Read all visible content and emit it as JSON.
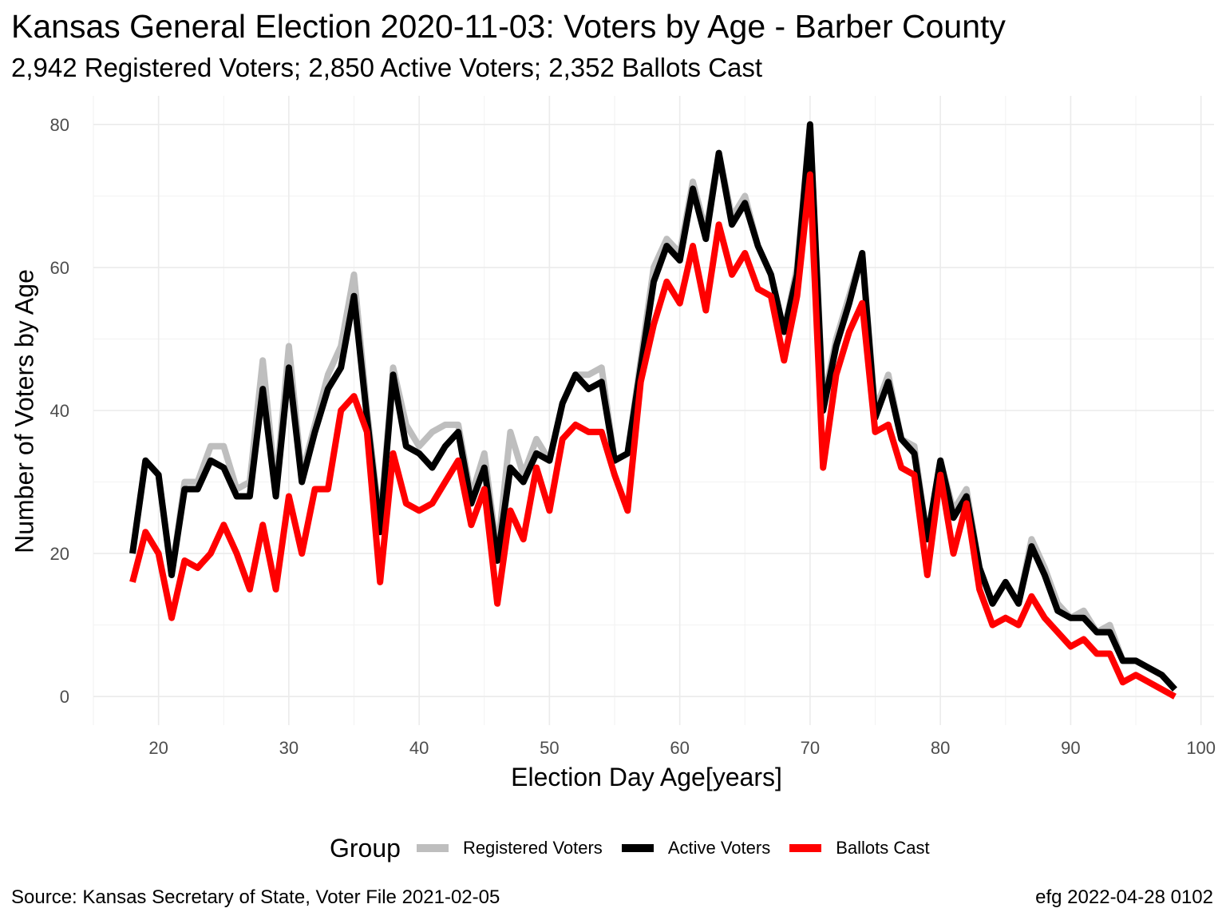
{
  "chart_data": {
    "type": "line",
    "title": "Kansas General Election 2020-11-03:  Voters by Age - Barber County",
    "subtitle": "2,942 Registered Voters; 2,850 Active Voters; 2,352 Ballots Cast",
    "xlabel": "Election Day Age[years]",
    "ylabel": "Number of Voters by Age",
    "xlim": [
      15,
      101
    ],
    "ylim": [
      -4,
      84
    ],
    "xticks": [
      20,
      30,
      40,
      50,
      60,
      70,
      80,
      90,
      100
    ],
    "yticks": [
      0,
      20,
      40,
      60,
      80
    ],
    "grid": true,
    "legend": {
      "title": "Group",
      "placement": "bottom"
    },
    "x": [
      18,
      19,
      20,
      21,
      22,
      23,
      24,
      25,
      26,
      27,
      28,
      29,
      30,
      31,
      32,
      33,
      34,
      35,
      36,
      37,
      38,
      39,
      40,
      41,
      42,
      43,
      44,
      45,
      46,
      47,
      48,
      49,
      50,
      51,
      52,
      53,
      54,
      55,
      56,
      57,
      58,
      59,
      60,
      61,
      62,
      63,
      64,
      65,
      66,
      67,
      68,
      69,
      70,
      71,
      72,
      73,
      74,
      75,
      76,
      77,
      78,
      79,
      80,
      81,
      82,
      83,
      84,
      85,
      86,
      87,
      88,
      89,
      90,
      91,
      92,
      93,
      94,
      95,
      96,
      97,
      98
    ],
    "series": [
      {
        "name": "Registered Voters",
        "color": "#bebebe",
        "values": [
          20,
          33,
          31,
          17,
          30,
          30,
          35,
          35,
          29,
          30,
          47,
          29,
          49,
          31,
          38,
          45,
          49,
          59,
          40,
          24,
          46,
          38,
          35,
          37,
          38,
          38,
          28,
          34,
          20,
          37,
          31,
          36,
          33,
          41,
          45,
          45,
          46,
          33,
          34,
          47,
          60,
          64,
          62,
          72,
          65,
          76,
          67,
          70,
          63,
          59,
          51,
          60,
          80,
          41,
          50,
          56,
          62,
          40,
          45,
          36,
          35,
          22,
          33,
          26,
          29,
          18,
          13,
          16,
          13,
          22,
          18,
          13,
          11,
          12,
          9,
          10,
          5,
          5,
          4,
          3,
          1
        ]
      },
      {
        "name": "Active Voters",
        "color": "#000000",
        "values": [
          20,
          33,
          31,
          17,
          29,
          29,
          33,
          32,
          28,
          28,
          43,
          28,
          46,
          30,
          37,
          43,
          46,
          56,
          39,
          23,
          45,
          35,
          34,
          32,
          35,
          37,
          27,
          32,
          19,
          32,
          30,
          34,
          33,
          41,
          45,
          43,
          44,
          33,
          34,
          46,
          58,
          63,
          61,
          71,
          64,
          76,
          66,
          69,
          63,
          59,
          51,
          59,
          80,
          40,
          49,
          55,
          62,
          39,
          44,
          36,
          34,
          22,
          33,
          25,
          28,
          18,
          13,
          16,
          13,
          21,
          17,
          12,
          11,
          11,
          9,
          9,
          5,
          5,
          4,
          3,
          1
        ]
      },
      {
        "name": "Ballots Cast",
        "color": "#ff0000",
        "values": [
          16,
          23,
          20,
          11,
          19,
          18,
          20,
          24,
          20,
          15,
          24,
          15,
          28,
          20,
          29,
          29,
          40,
          42,
          37,
          16,
          34,
          27,
          26,
          27,
          30,
          33,
          24,
          29,
          13,
          26,
          22,
          32,
          26,
          36,
          38,
          37,
          37,
          31,
          26,
          44,
          52,
          58,
          55,
          63,
          54,
          66,
          59,
          62,
          57,
          56,
          47,
          56,
          73,
          32,
          45,
          51,
          55,
          37,
          38,
          32,
          31,
          17,
          31,
          20,
          27,
          15,
          10,
          11,
          10,
          14,
          11,
          9,
          7,
          8,
          6,
          6,
          2,
          3,
          2,
          1,
          0
        ]
      }
    ]
  },
  "captions": {
    "source": "Source:  Kansas Secretary of State, Voter File  2021-02-05",
    "credit": "efg 2022-04-28 0102"
  }
}
